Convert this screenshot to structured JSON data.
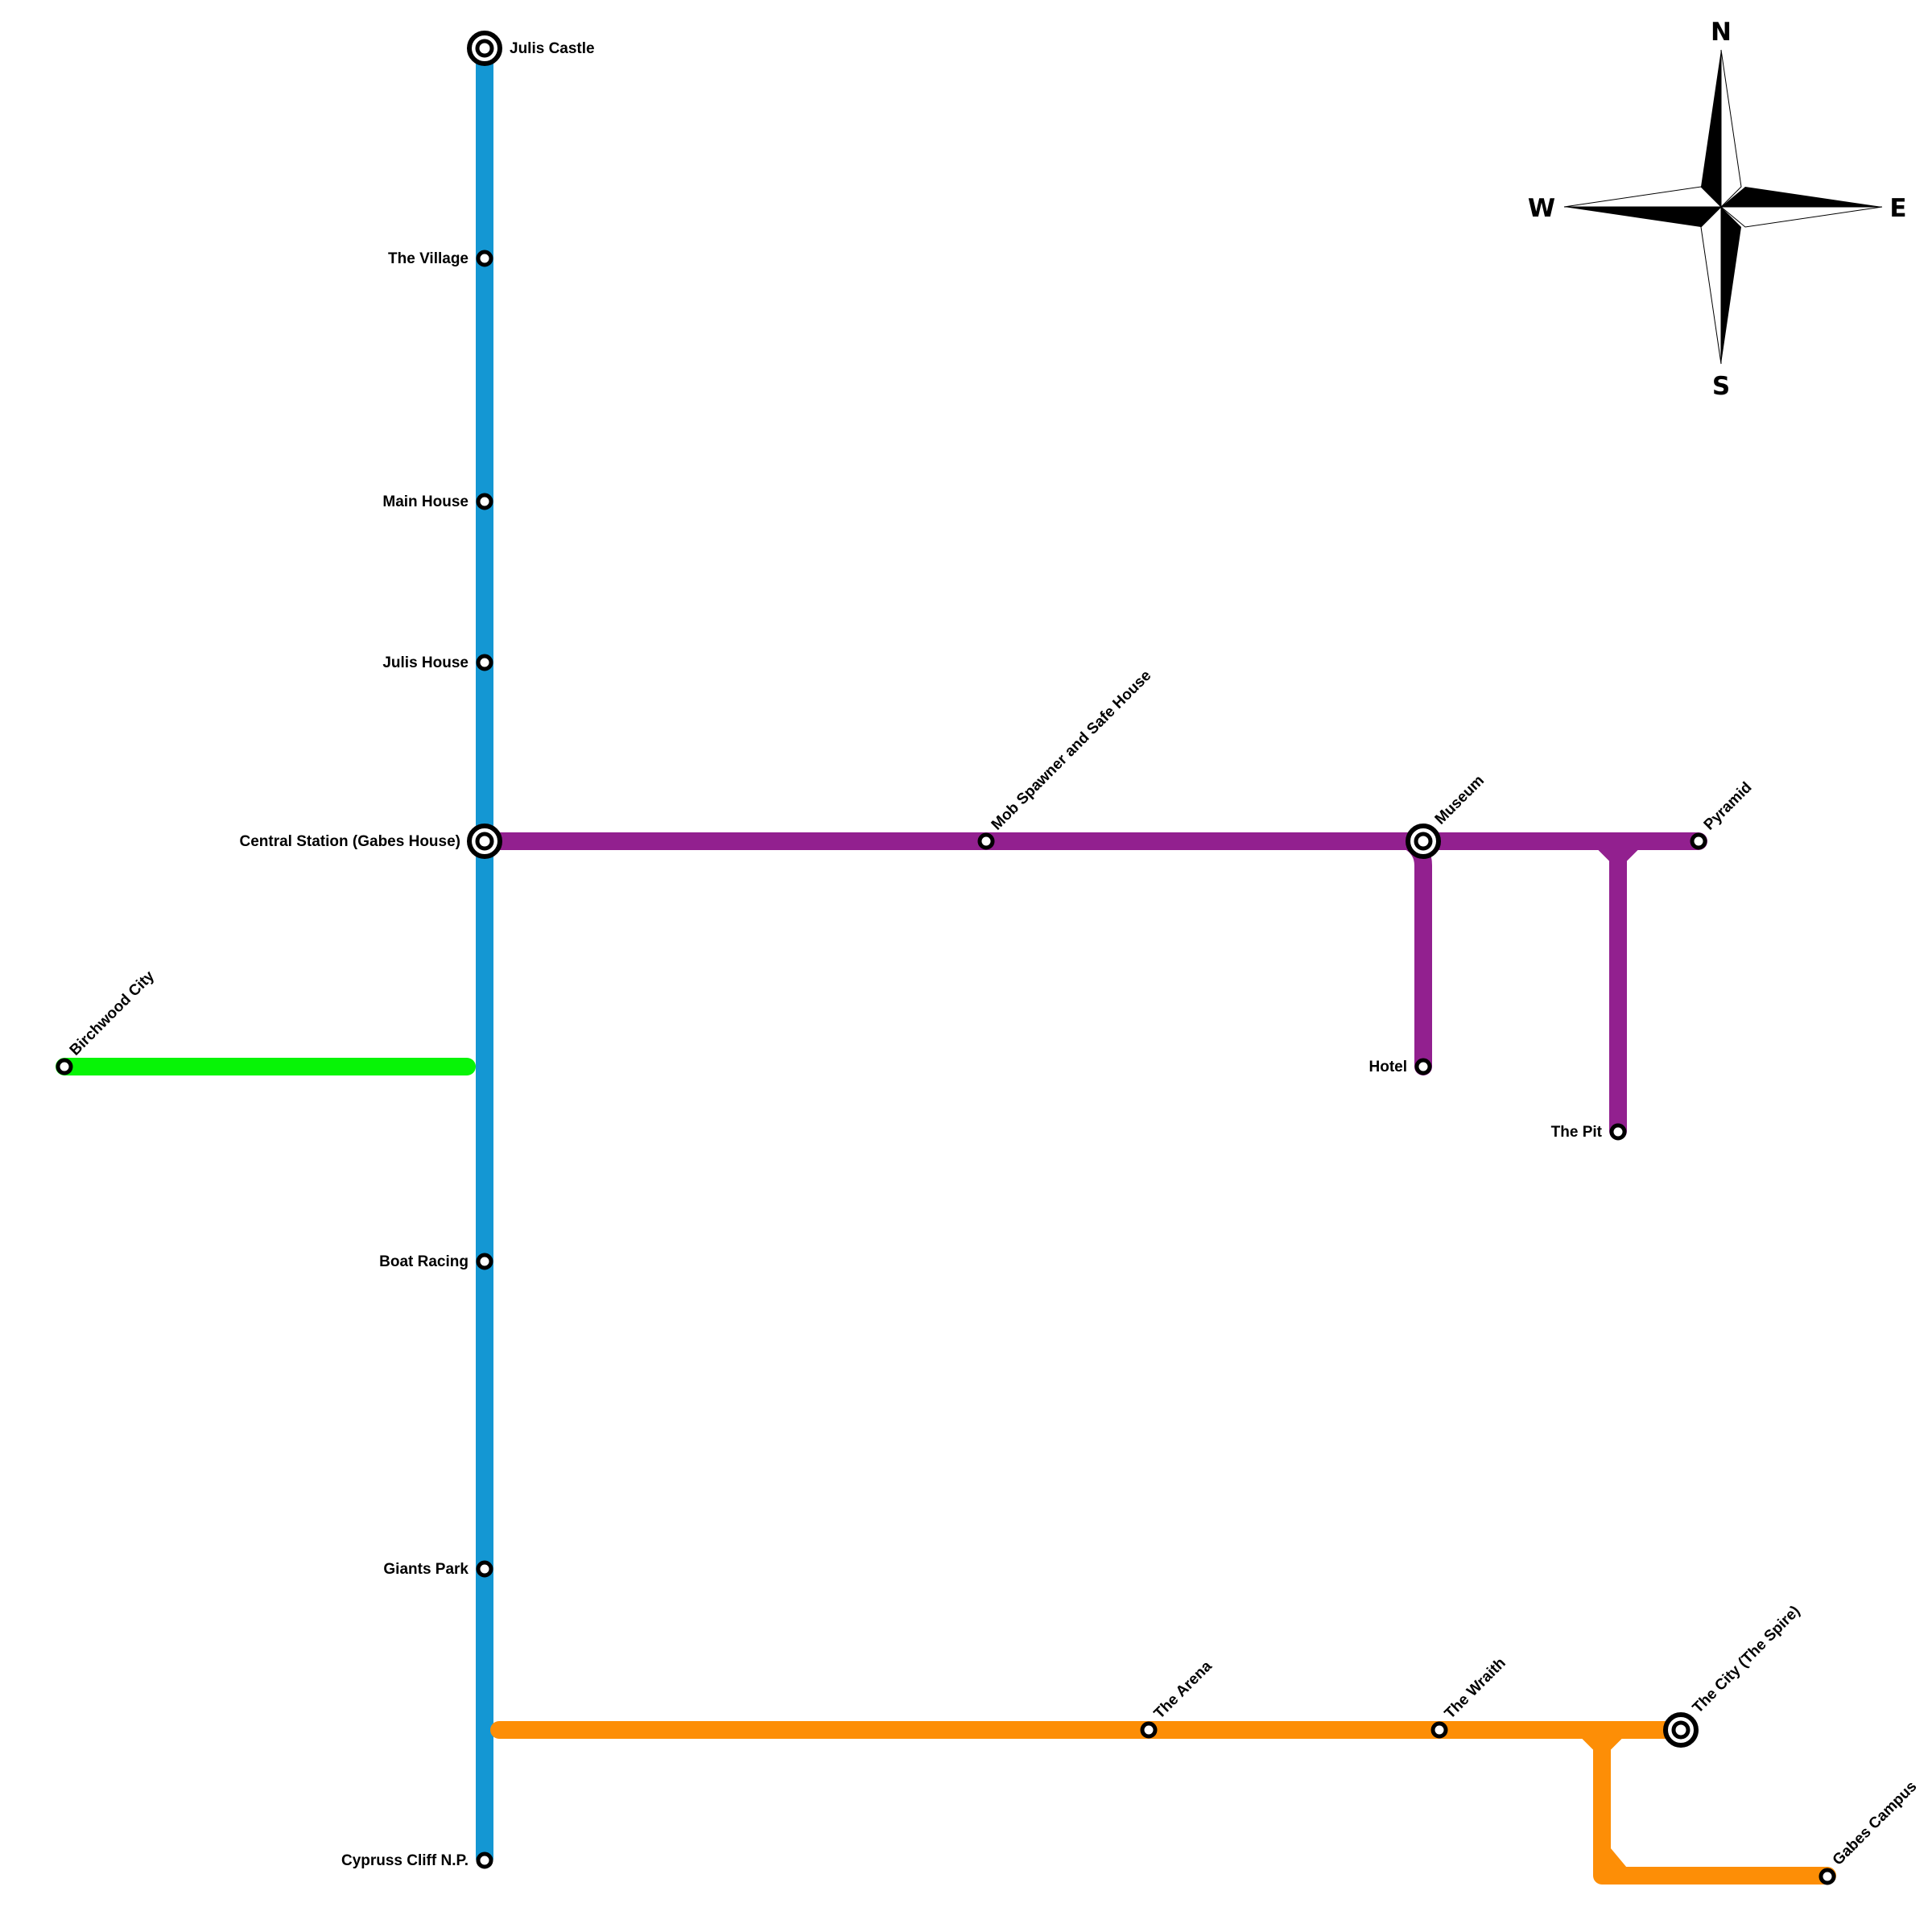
{
  "lines": [
    {
      "id": "blue",
      "color": "#1497d3"
    },
    {
      "id": "purple",
      "color": "#92208f"
    },
    {
      "id": "green",
      "color": "#07f406"
    },
    {
      "id": "orange",
      "color": "#fd8e06"
    }
  ],
  "stations": {
    "julis_castle": {
      "name": "Julis Castle",
      "interchange": true
    },
    "the_village": {
      "name": "The Village",
      "interchange": false
    },
    "main_house": {
      "name": "Main House",
      "interchange": false
    },
    "julis_house": {
      "name": "Julis House",
      "interchange": false
    },
    "central_station": {
      "name": "Central Station (Gabes House)",
      "interchange": true
    },
    "boat_racing": {
      "name": "Boat Racing",
      "interchange": false
    },
    "giants_park": {
      "name": "Giants Park",
      "interchange": false
    },
    "cypruss_cliff": {
      "name": "Cypruss Cliff N.P.",
      "interchange": false
    },
    "birchwood_city": {
      "name": "Birchwood City",
      "interchange": false
    },
    "mob_spawner": {
      "name": "Mob Spawner and Safe House",
      "interchange": false
    },
    "museum": {
      "name": "Museum",
      "interchange": true
    },
    "pyramid": {
      "name": "Pyramid",
      "interchange": false
    },
    "hotel": {
      "name": "Hotel",
      "interchange": false
    },
    "the_pit": {
      "name": "The Pit",
      "interchange": false
    },
    "the_arena": {
      "name": "The Arena",
      "interchange": false
    },
    "the_wraith": {
      "name": "The Wraith",
      "interchange": false
    },
    "the_city": {
      "name": "The City (The Spire)",
      "interchange": true
    },
    "gabes_campus": {
      "name": "Gabes Campus",
      "interchange": false
    }
  },
  "compass": {
    "n": "N",
    "s": "S",
    "e": "E",
    "w": "W"
  }
}
